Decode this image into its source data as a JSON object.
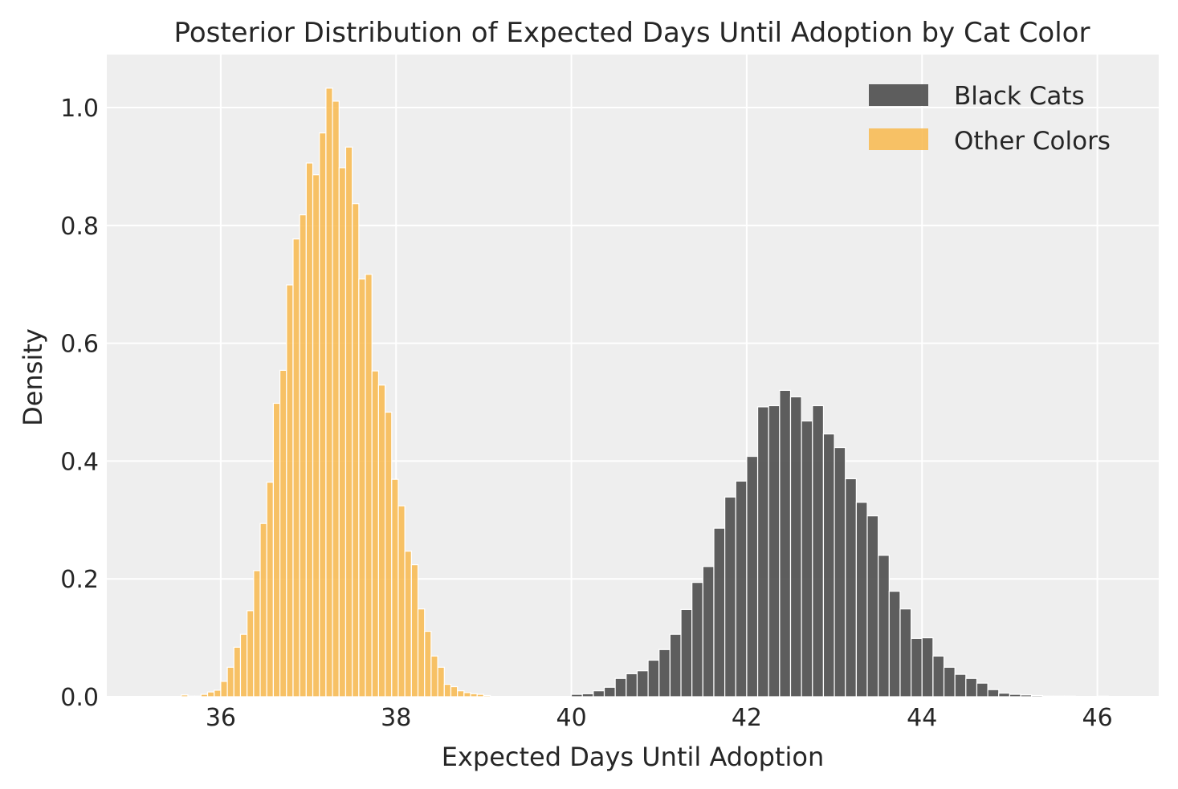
{
  "chart_data": {
    "type": "bar",
    "title": "Posterior Distribution of Expected Days Until Adoption by Cat Color",
    "xlabel": "Expected Days Until Adoption",
    "ylabel": "Density",
    "xlim": [
      34.7,
      46.7
    ],
    "ylim": [
      0,
      1.09
    ],
    "xticks": [
      36,
      38,
      40,
      42,
      44,
      46
    ],
    "yticks": [
      0.0,
      0.2,
      0.4,
      0.6,
      0.8,
      1.0
    ],
    "xtick_labels": [
      "36",
      "38",
      "40",
      "42",
      "44",
      "46"
    ],
    "ytick_labels": [
      "0.0",
      "0.2",
      "0.4",
      "0.6",
      "0.8",
      "1.0"
    ],
    "grid": true,
    "legend_position": "top-right",
    "series": [
      {
        "name": "Black Cats",
        "color": "#4d4d4d",
        "opacity": 0.9,
        "bin_width": 0.125,
        "bin_start": 40.0,
        "values": [
          0.004,
          0.005,
          0.01,
          0.016,
          0.031,
          0.039,
          0.044,
          0.062,
          0.08,
          0.106,
          0.148,
          0.194,
          0.221,
          0.286,
          0.339,
          0.366,
          0.408,
          0.492,
          0.494,
          0.52,
          0.509,
          0.468,
          0.494,
          0.446,
          0.423,
          0.37,
          0.33,
          0.307,
          0.24,
          0.179,
          0.149,
          0.099,
          0.1,
          0.069,
          0.05,
          0.038,
          0.031,
          0.023,
          0.012,
          0.006,
          0.004,
          0.003,
          0.002,
          0.001,
          0.001,
          0.001,
          0.0,
          0.0,
          0.001
        ],
        "note": ""
      },
      {
        "name": "Other Colors",
        "color": "#f8b84c",
        "opacity": 0.85,
        "bin_width": 0.075,
        "bin_start": 35.55,
        "values": [
          0.003,
          0.001,
          0.001,
          0.004,
          0.008,
          0.011,
          0.026,
          0.05,
          0.084,
          0.106,
          0.146,
          0.214,
          0.294,
          0.364,
          0.498,
          0.554,
          0.699,
          0.777,
          0.818,
          0.906,
          0.886,
          0.957,
          1.033,
          1.011,
          0.898,
          0.933,
          0.837,
          0.709,
          0.717,
          0.553,
          0.529,
          0.483,
          0.369,
          0.324,
          0.247,
          0.224,
          0.149,
          0.111,
          0.069,
          0.05,
          0.021,
          0.017,
          0.01,
          0.007,
          0.005,
          0.004,
          0.002
        ]
      }
    ]
  }
}
